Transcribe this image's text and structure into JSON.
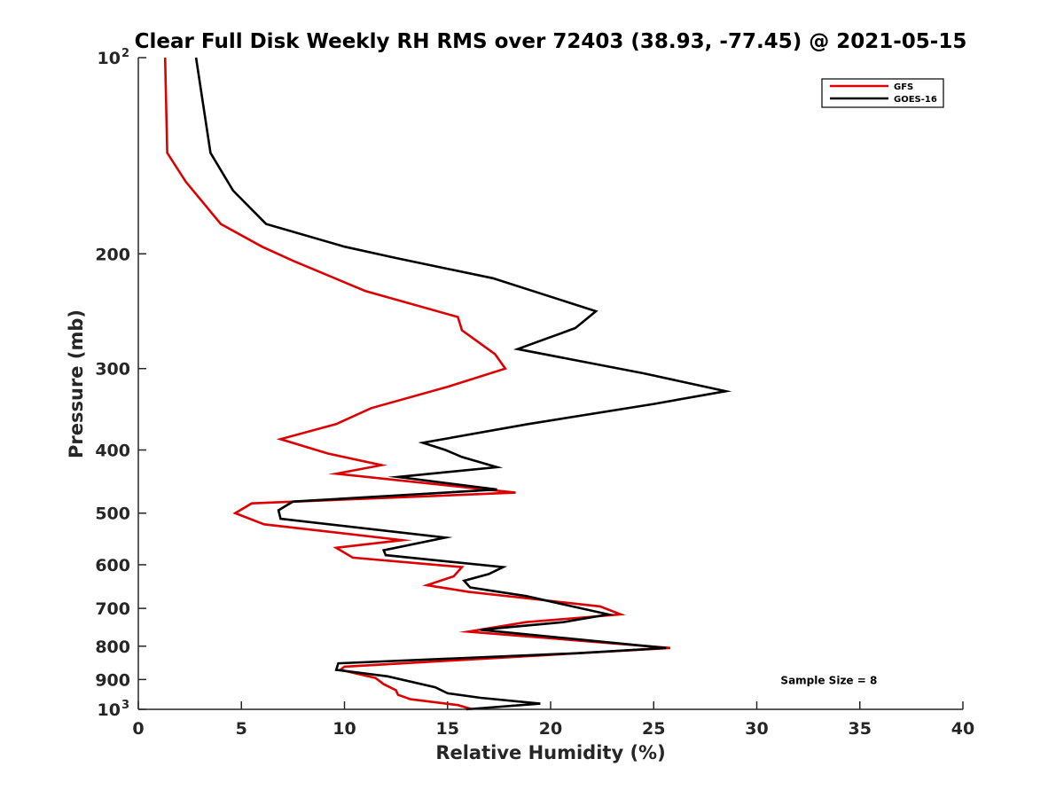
{
  "chart_data": {
    "type": "line",
    "title": "Clear Full Disk Weekly RH RMS over 72403 (38.93, -77.45) @ 2021-05-15",
    "xlabel": "Relative Humidity (%)",
    "ylabel": "Pressure (mb)",
    "xlim": [
      0,
      40
    ],
    "ylim": [
      1000,
      100
    ],
    "y_scale": "log",
    "y_reversed": true,
    "grid": false,
    "legend_position": "top-right",
    "x_ticks": [
      0,
      5,
      10,
      15,
      20,
      25,
      30,
      35,
      40
    ],
    "y_ticks": [
      {
        "value": 100,
        "label": "10",
        "sup": "2"
      },
      {
        "value": 200,
        "label": "200",
        "sup": ""
      },
      {
        "value": 300,
        "label": "300",
        "sup": ""
      },
      {
        "value": 400,
        "label": "400",
        "sup": ""
      },
      {
        "value": 500,
        "label": "500",
        "sup": ""
      },
      {
        "value": 600,
        "label": "600",
        "sup": ""
      },
      {
        "value": 700,
        "label": "700",
        "sup": ""
      },
      {
        "value": 800,
        "label": "800",
        "sup": ""
      },
      {
        "value": 900,
        "label": "900",
        "sup": ""
      },
      {
        "value": 1000,
        "label": "10",
        "sup": "3"
      }
    ],
    "series": [
      {
        "name": "GFS",
        "color": "#dd0000",
        "points": [
          [
            1.3,
            100
          ],
          [
            1.4,
            140
          ],
          [
            2.3,
            155
          ],
          [
            4.0,
            180
          ],
          [
            6.0,
            195
          ],
          [
            7.5,
            205
          ],
          [
            11.0,
            228
          ],
          [
            15.5,
            250
          ],
          [
            15.7,
            262
          ],
          [
            17.3,
            285
          ],
          [
            17.8,
            300
          ],
          [
            15.0,
            320
          ],
          [
            11.3,
            345
          ],
          [
            9.6,
            365
          ],
          [
            6.9,
            385
          ],
          [
            9.2,
            405
          ],
          [
            11.8,
            422
          ],
          [
            9.6,
            435
          ],
          [
            18.3,
            465
          ],
          [
            5.5,
            483
          ],
          [
            4.7,
            500
          ],
          [
            6.1,
            520
          ],
          [
            12.8,
            550
          ],
          [
            9.6,
            565
          ],
          [
            10.4,
            585
          ],
          [
            15.7,
            605
          ],
          [
            15.3,
            625
          ],
          [
            14.0,
            645
          ],
          [
            16.0,
            660
          ],
          [
            22.4,
            695
          ],
          [
            23.4,
            715
          ],
          [
            18.8,
            735
          ],
          [
            16.0,
            760
          ],
          [
            25.8,
            805
          ],
          [
            10.0,
            860
          ],
          [
            9.8,
            870
          ],
          [
            11.5,
            895
          ],
          [
            11.9,
            915
          ],
          [
            12.5,
            935
          ],
          [
            12.6,
            950
          ],
          [
            13.2,
            965
          ],
          [
            15.5,
            985
          ],
          [
            16.2,
            1000
          ]
        ]
      },
      {
        "name": "GOES-16",
        "color": "#000000",
        "points": [
          [
            2.8,
            100
          ],
          [
            3.5,
            140
          ],
          [
            4.6,
            160
          ],
          [
            6.2,
            180
          ],
          [
            10.0,
            195
          ],
          [
            12.5,
            203
          ],
          [
            17.2,
            218
          ],
          [
            22.2,
            245
          ],
          [
            21.2,
            260
          ],
          [
            18.4,
            280
          ],
          [
            24.5,
            305
          ],
          [
            28.5,
            325
          ],
          [
            25.0,
            340
          ],
          [
            18.9,
            365
          ],
          [
            13.8,
            390
          ],
          [
            14.9,
            400
          ],
          [
            15.7,
            410
          ],
          [
            17.4,
            425
          ],
          [
            12.6,
            440
          ],
          [
            17.4,
            460
          ],
          [
            7.5,
            480
          ],
          [
            6.8,
            495
          ],
          [
            6.9,
            510
          ],
          [
            14.9,
            545
          ],
          [
            11.9,
            570
          ],
          [
            12.0,
            580
          ],
          [
            17.7,
            605
          ],
          [
            17.0,
            620
          ],
          [
            15.8,
            635
          ],
          [
            16.1,
            650
          ],
          [
            18.8,
            670
          ],
          [
            22.8,
            715
          ],
          [
            20.6,
            735
          ],
          [
            16.6,
            755
          ],
          [
            25.6,
            805
          ],
          [
            21.3,
            820
          ],
          [
            9.7,
            850
          ],
          [
            9.6,
            870
          ],
          [
            12.1,
            890
          ],
          [
            14.4,
            925
          ],
          [
            15.0,
            945
          ],
          [
            16.6,
            960
          ],
          [
            19.5,
            980
          ],
          [
            15.9,
            1000
          ]
        ]
      }
    ],
    "annotations": [
      {
        "text": "Sample Size = 8",
        "x": 33.5,
        "y": 900
      }
    ]
  }
}
